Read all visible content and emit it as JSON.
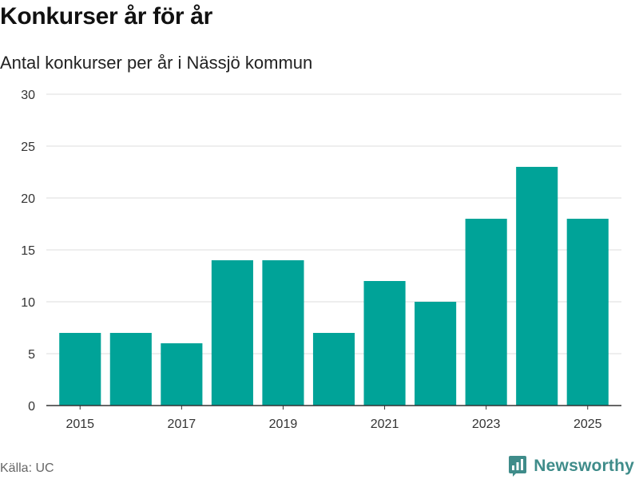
{
  "header": {
    "title": "Konkurser år för år",
    "subtitle": "Antal konkurser per år i Nässjö kommun"
  },
  "footer": {
    "source": "Källa: UC",
    "brand": "Newsworthy",
    "brand_icon": "newsworthy-logo-icon"
  },
  "colors": {
    "bar": "#00a398",
    "grid": "#dddddd",
    "axis": "#333333",
    "tick_text": "#333333",
    "brand": "#3f8c8a"
  },
  "chart_data": {
    "type": "bar",
    "title": "Konkurser år för år",
    "subtitle": "Antal konkurser per år i Nässjö kommun",
    "xlabel": "",
    "ylabel": "",
    "categories": [
      "2015",
      "2016",
      "2017",
      "2018",
      "2019",
      "2020",
      "2021",
      "2022",
      "2023",
      "2024",
      "2025"
    ],
    "values": [
      7,
      7,
      6,
      14,
      14,
      7,
      12,
      10,
      18,
      23,
      18
    ],
    "x_tick_labels": [
      "2015",
      "2017",
      "2019",
      "2021",
      "2023",
      "2025"
    ],
    "y_ticks": [
      0,
      5,
      10,
      15,
      20,
      25,
      30
    ],
    "ylim": [
      0,
      30
    ],
    "grid": true,
    "legend": "none"
  }
}
